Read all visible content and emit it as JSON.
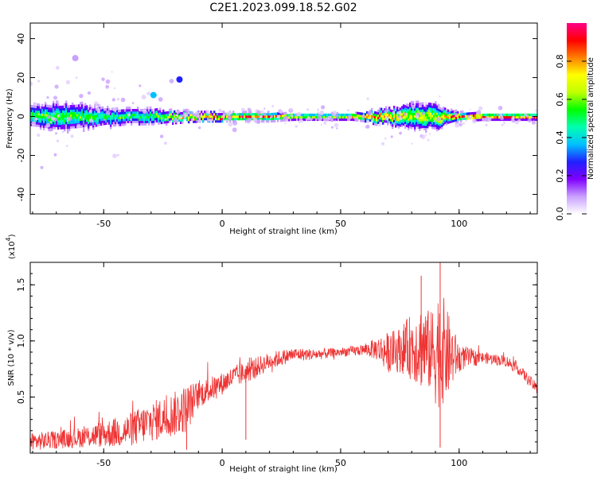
{
  "title": "C2E1.2023.099.18.52.G02",
  "chart_data": [
    {
      "type": "heatmap",
      "title": "C2E1.2023.099.18.52.G02",
      "xlabel": "Height of straight line (km)",
      "ylabel": "Frequency (Hz)",
      "xlim": [
        -81,
        133
      ],
      "ylim": [
        -50,
        48
      ],
      "xticks": [
        -50,
        0,
        50,
        100
      ],
      "yticks": [
        -40,
        -20,
        0,
        20,
        40
      ],
      "colorbar": {
        "label": "Normalized spectral amplitude",
        "range": [
          0.0,
          1.0
        ],
        "ticks": [
          0.0,
          0.2,
          0.4,
          0.6,
          0.8
        ],
        "tick_labels": [
          "0.0",
          "0.2",
          "0.4",
          "0.6",
          "0.8"
        ],
        "colors": [
          "#ffffff",
          "#c9a0ff",
          "#8000ff",
          "#2020ff",
          "#00c0ff",
          "#00ffb0",
          "#00ff00",
          "#c0ff00",
          "#ffff00",
          "#ff8000",
          "#ff0000",
          "#ff0088"
        ]
      },
      "band_profile": {
        "x": [
          -81,
          -70,
          -60,
          -50,
          -40,
          -30,
          -20,
          -10,
          0,
          10,
          20,
          30,
          40,
          50,
          55,
          60,
          65,
          70,
          75,
          80,
          85,
          90,
          95,
          100,
          110,
          120,
          133
        ],
        "halfwidth_hz": [
          5,
          6,
          5.5,
          4,
          3.5,
          3.5,
          2.5,
          2,
          2,
          2,
          2,
          1.5,
          1.5,
          1.5,
          1.5,
          2,
          3,
          3.5,
          4.5,
          6,
          5.5,
          6,
          3,
          2,
          1.5,
          1.5,
          1.5
        ],
        "peak_amplitude": [
          0.55,
          0.6,
          0.6,
          0.55,
          0.55,
          0.55,
          0.75,
          0.85,
          0.95,
          0.9,
          0.85,
          0.75,
          0.7,
          0.75,
          0.85,
          0.9,
          0.85,
          0.85,
          0.8,
          0.7,
          0.75,
          0.7,
          0.85,
          0.95,
          0.95,
          0.95,
          0.95
        ]
      },
      "notable_features": [
        {
          "x": -29,
          "freq_hz": 11,
          "amplitude": 0.35
        },
        {
          "x": -18,
          "freq_hz": 19,
          "amplitude": 0.25
        },
        {
          "x": -62,
          "freq_hz": 30,
          "amplitude": 0.1
        }
      ]
    },
    {
      "type": "line",
      "xlabel": "Height of straight line (km)",
      "ylabel": "SNR (10 * v/v)",
      "exponent_label": "(x10",
      "exponent_sup": "4",
      "exponent_close": ")",
      "xlim": [
        -81,
        133
      ],
      "ylim": [
        0,
        1.7
      ],
      "xticks": [
        -50,
        0,
        50,
        100
      ],
      "yticks": [
        0.5,
        1.0,
        1.5
      ],
      "ytick_labels": [
        "0.5",
        "1.0",
        "1.5"
      ],
      "color": "#ee3333",
      "envelope": {
        "x": [
          -81,
          -70,
          -60,
          -50,
          -40,
          -30,
          -20,
          -15,
          -10,
          0,
          5,
          10,
          20,
          30,
          40,
          50,
          60,
          65,
          70,
          75,
          80,
          85,
          88,
          90,
          92,
          95,
          100,
          110,
          120,
          125,
          133
        ],
        "mean": [
          0.1,
          0.12,
          0.14,
          0.17,
          0.2,
          0.28,
          0.35,
          0.4,
          0.52,
          0.62,
          0.68,
          0.72,
          0.82,
          0.88,
          0.88,
          0.9,
          0.92,
          0.93,
          0.9,
          0.92,
          0.95,
          0.95,
          0.9,
          0.92,
          0.95,
          0.88,
          0.85,
          0.85,
          0.82,
          0.75,
          0.57
        ],
        "spread": [
          0.08,
          0.08,
          0.09,
          0.12,
          0.15,
          0.18,
          0.2,
          0.22,
          0.12,
          0.1,
          0.1,
          0.1,
          0.08,
          0.06,
          0.05,
          0.04,
          0.05,
          0.1,
          0.18,
          0.2,
          0.3,
          0.4,
          0.35,
          0.5,
          0.55,
          0.4,
          0.12,
          0.05,
          0.05,
          0.05,
          0.05
        ]
      },
      "notable_points": [
        {
          "x": 10,
          "y": 0.12
        },
        {
          "x": 92,
          "y": 1.7
        },
        {
          "x": 84,
          "y": 1.58
        },
        {
          "x": 92,
          "y": 0.05
        },
        {
          "x": -15,
          "y": 0.03
        }
      ]
    }
  ]
}
